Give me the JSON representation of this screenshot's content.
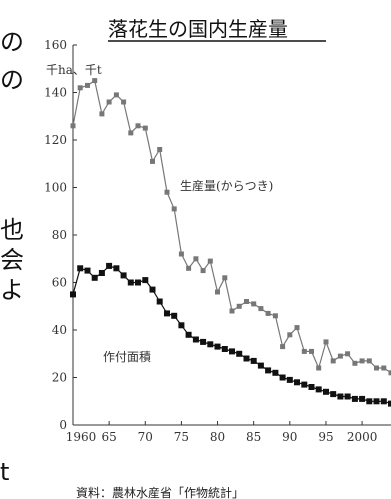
{
  "left_fragments": [
    {
      "text": "の",
      "line": 0
    },
    {
      "text": "の",
      "line": 1
    },
    {
      "text": "也",
      "line": 2
    },
    {
      "text": "会",
      "line": 3
    },
    {
      "text": "よ",
      "line": 4
    },
    {
      "text": "t",
      "line": 5
    }
  ],
  "chart_data": {
    "type": "line",
    "title": "落花生の国内生産量",
    "ylabel": "千ha、千t",
    "xlabel": "",
    "source": "資料：農林水産省「作物統計」",
    "xlim": [
      1960,
      2004
    ],
    "ylim": [
      0,
      160
    ],
    "x_ticks": [
      1960,
      1965,
      1970,
      1975,
      1980,
      1985,
      1990,
      1995,
      2000
    ],
    "x_tick_labels": [
      "1960",
      "65",
      "70",
      "75",
      "80",
      "85",
      "90",
      "95",
      "2000"
    ],
    "y_ticks": [
      0,
      20,
      40,
      60,
      80,
      100,
      120,
      140,
      160
    ],
    "grid": false,
    "series": [
      {
        "name": "生産量(からつき)",
        "color": "#777777",
        "marker": "square",
        "x": [
          1960,
          1961,
          1962,
          1963,
          1964,
          1965,
          1966,
          1967,
          1968,
          1969,
          1970,
          1971,
          1972,
          1973,
          1974,
          1975,
          1976,
          1977,
          1978,
          1979,
          1980,
          1981,
          1982,
          1983,
          1984,
          1985,
          1986,
          1987,
          1988,
          1989,
          1990,
          1991,
          1992,
          1993,
          1994,
          1995,
          1996,
          1997,
          1998,
          1999,
          2000,
          2001,
          2002,
          2003,
          2004
        ],
        "values": [
          126,
          142,
          143,
          145,
          131,
          136,
          139,
          136,
          123,
          126,
          125,
          111,
          116,
          98,
          91,
          72,
          66,
          70,
          65,
          69,
          56,
          62,
          48,
          50,
          52,
          51,
          49,
          47,
          46,
          33,
          38,
          41,
          31,
          31,
          24,
          35,
          27,
          29,
          30,
          26,
          27,
          27,
          24,
          24,
          22
        ]
      },
      {
        "name": "作付面積",
        "color": "#111111",
        "marker": "square",
        "x": [
          1960,
          1961,
          1962,
          1963,
          1964,
          1965,
          1966,
          1967,
          1968,
          1969,
          1970,
          1971,
          1972,
          1973,
          1974,
          1975,
          1976,
          1977,
          1978,
          1979,
          1980,
          1981,
          1982,
          1983,
          1984,
          1985,
          1986,
          1987,
          1988,
          1989,
          1990,
          1991,
          1992,
          1993,
          1994,
          1995,
          1996,
          1997,
          1998,
          1999,
          2000,
          2001,
          2002,
          2003,
          2004
        ],
        "values": [
          55,
          66,
          65,
          62,
          64,
          67,
          66,
          63,
          60,
          60,
          61,
          57,
          52,
          47,
          46,
          42,
          38,
          36,
          35,
          34,
          33,
          32,
          31,
          30,
          28,
          27,
          25,
          23,
          22,
          20,
          19,
          18,
          17,
          16,
          15,
          14,
          13,
          12,
          12,
          11,
          11,
          10,
          10,
          10,
          9
        ]
      }
    ]
  }
}
